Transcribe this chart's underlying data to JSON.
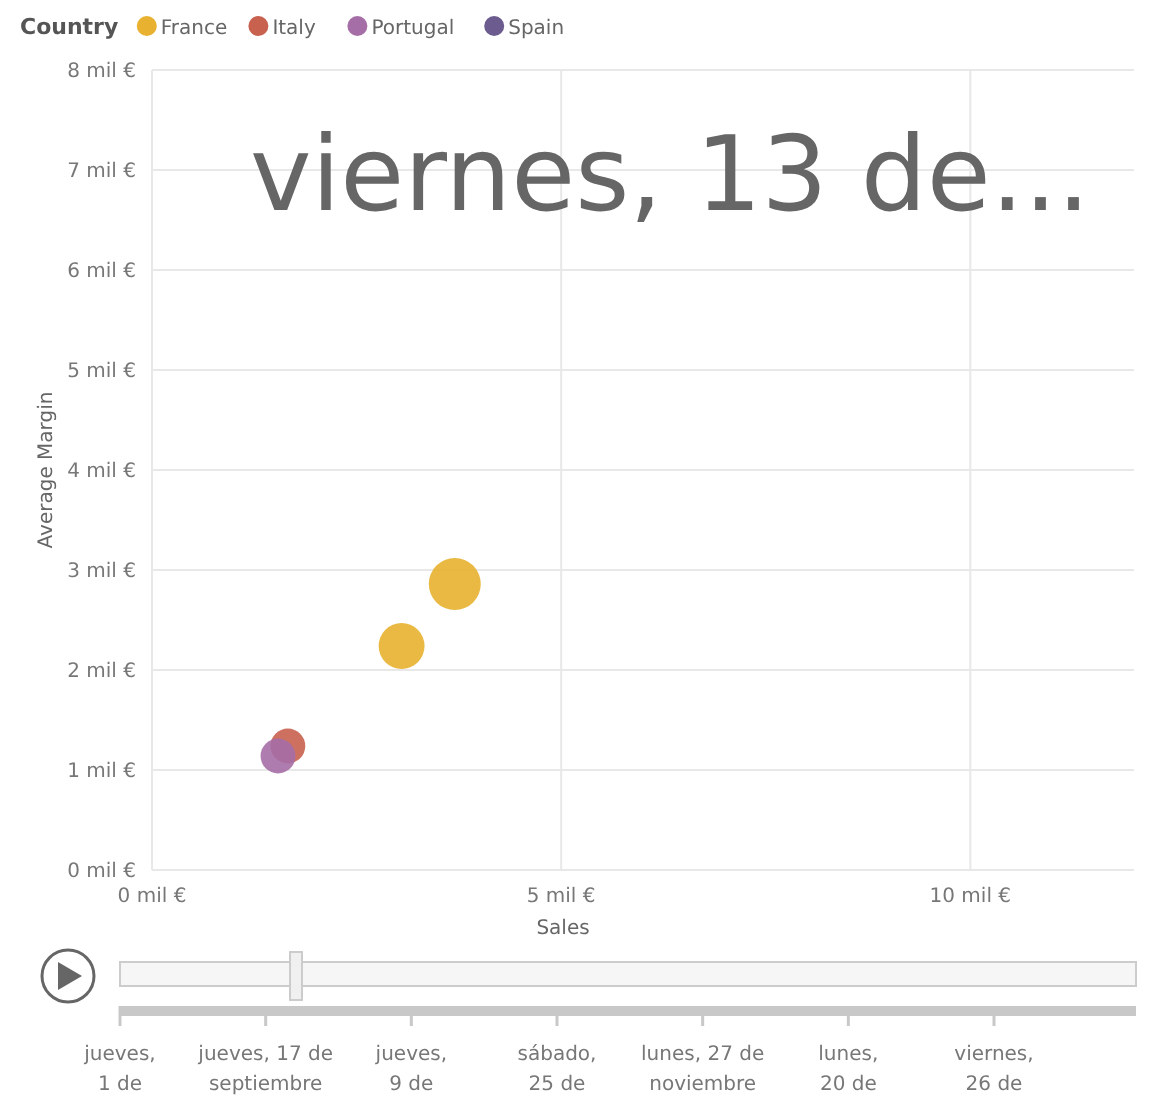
{
  "chart_data": {
    "type": "bubble",
    "xlabel": "Sales",
    "ylabel": "Average Margin",
    "legend_title": "Country",
    "legend": "top left",
    "grid": true,
    "xlim": [
      0,
      12
    ],
    "xticks": [
      {
        "value": 0,
        "label": "0 mil €"
      },
      {
        "value": 5,
        "label": "5 mil €"
      },
      {
        "value": 10,
        "label": "10 mil €"
      }
    ],
    "ylim": [
      0,
      8
    ],
    "yticks": [
      {
        "value": 0,
        "label": "0 mil €"
      },
      {
        "value": 1,
        "label": "1 mil €"
      },
      {
        "value": 2,
        "label": "2 mil €"
      },
      {
        "value": 3,
        "label": "3 mil €"
      },
      {
        "value": 4,
        "label": "4 mil €"
      },
      {
        "value": 5,
        "label": "5 mil €"
      },
      {
        "value": 6,
        "label": "6 mil €"
      },
      {
        "value": 7,
        "label": "7 mil €"
      },
      {
        "value": 8,
        "label": "8 mil €"
      }
    ],
    "series": [
      {
        "name": "France",
        "color": "#e8b130",
        "x": [
          3.05,
          3.7
        ],
        "values": [
          2.24,
          2.86
        ],
        "sizes": [
          0.78,
          1
        ]
      },
      {
        "name": "Italy",
        "color": "#c9614f",
        "x": [
          1.66
        ],
        "values": [
          1.24
        ],
        "sizes": [
          0.45
        ]
      },
      {
        "name": "Portugal",
        "color": "#a56ea6",
        "x": [
          1.54
        ],
        "values": [
          1.14
        ],
        "sizes": [
          0.45
        ]
      },
      {
        "name": "Spain",
        "color": "#6b5b8e"
      }
    ],
    "annotations": [
      "viernes, 13 de...",
      "jueves,\n1 de",
      "jueves, 17 de\nseptiembre",
      "jueves,\n9 de",
      "sábado,\n25 de",
      "lunes, 27 de\nnoviembre",
      "lunes,\n20 de",
      "viernes,\n26 de"
    ]
  }
}
